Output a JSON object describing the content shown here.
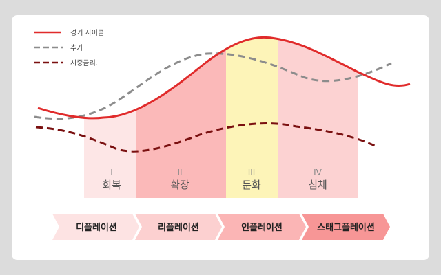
{
  "chart_data": {
    "type": "line",
    "title": "",
    "xlabel": "",
    "ylabel": "",
    "legend_position": "top-left",
    "series": [
      {
        "name": "경기 사이클",
        "color": "#e02b2b",
        "style": "solid"
      },
      {
        "name": "추가",
        "color": "#8c8c8c",
        "style": "dashed"
      },
      {
        "name": "시중금리.",
        "color": "#7a1010",
        "style": "dashed"
      }
    ],
    "phases": [
      {
        "numeral": "I",
        "label": "회복",
        "color": "#fde6e6"
      },
      {
        "numeral": "II",
        "label": "확장",
        "color": "#fbb9b9"
      },
      {
        "numeral": "III",
        "label": "둔화",
        "color": "#fdf4b8"
      },
      {
        "numeral": "IV",
        "label": "침체",
        "color": "#fcd2d2"
      }
    ],
    "stages": [
      {
        "label": "디플레이션",
        "color": "#fde3e3"
      },
      {
        "label": "리플레이션",
        "color": "#fcd0d0"
      },
      {
        "label": "인플레이션",
        "color": "#fbb5b5"
      },
      {
        "label": "스태그플레이션",
        "color": "#f79696"
      }
    ]
  }
}
